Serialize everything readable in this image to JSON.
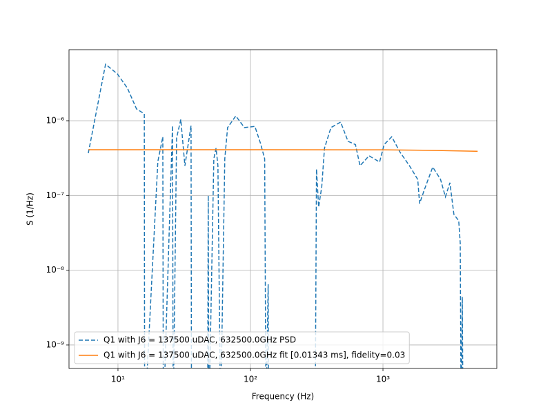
{
  "chart_data": {
    "type": "line",
    "xlabel": "Frequency (Hz)",
    "ylabel": "S (1/Hz)",
    "xscale": "log",
    "yscale": "log",
    "grid": true,
    "legend": "lower left",
    "xlim": [
      4.27,
      7230
    ],
    "ylim": [
      4.85e-10,
      8.93e-06
    ],
    "xticks": [
      {
        "value": 10,
        "label": "10¹"
      },
      {
        "value": 100,
        "label": "10²"
      },
      {
        "value": 1000,
        "label": "10³"
      }
    ],
    "yticks": [
      {
        "value": 1e-09,
        "label": "10⁻⁹"
      },
      {
        "value": 1e-08,
        "label": "10⁻⁸"
      },
      {
        "value": 1e-07,
        "label": "10⁻⁷"
      },
      {
        "value": 1e-06,
        "label": "10⁻⁶"
      }
    ],
    "series": [
      {
        "name": "Q1 with J6 = 137500 uDAC, 632500.0GHz PSD",
        "color": "#1f77b4",
        "dash": "dashed",
        "x": [
          5.97,
          8.06,
          9.88,
          11.8,
          13.8,
          15.8,
          15.9,
          20.0,
          21.8,
          22.0,
          25.8,
          26.1,
          27.7,
          29.8,
          32.0,
          35.6,
          35.9,
          47.5,
          48.0,
          48.6,
          52.9,
          55.0,
          56.8,
          59.5,
          64.0,
          67.2,
          77.5,
          90,
          108,
          119,
          128,
          131,
          136,
          137,
          308,
          315,
          327,
          345,
          362,
          405,
          479,
          545,
          620,
          671,
          786,
          943,
          1020,
          1165,
          1345,
          1585,
          1830,
          1890,
          2055,
          2375,
          2720,
          2960,
          3200,
          3430,
          3730,
          3830,
          3890,
          3970,
          4020
        ],
        "values": [
          3.68e-07,
          5.7e-06,
          4.25e-06,
          2.72e-06,
          1.44e-06,
          1.24e-06,
          1e-10,
          2.85e-07,
          6.1e-07,
          1e-10,
          8.6e-07,
          1e-10,
          5.9e-07,
          1.04e-06,
          2.5e-07,
          8.6e-07,
          1e-10,
          1e-10,
          1e-07,
          1e-10,
          3.1e-07,
          4.3e-07,
          2.5e-07,
          1e-10,
          3.1e-07,
          8.1e-07,
          1.16e-06,
          8.1e-07,
          8.4e-07,
          5e-07,
          3.1e-07,
          1e-10,
          6.5e-09,
          1e-10,
          1e-10,
          2.26e-07,
          7e-08,
          1.3e-07,
          4.3e-07,
          8.1e-07,
          9.6e-07,
          5.3e-07,
          4.8e-07,
          2.5e-07,
          3.4e-07,
          2.8e-07,
          4.8e-07,
          6.1e-07,
          3.8e-07,
          2.5e-07,
          1.64e-07,
          7.8e-08,
          1.2e-07,
          2.4e-07,
          1.64e-07,
          9.6e-08,
          1.48e-07,
          5.6e-08,
          4.6e-08,
          2.3e-08,
          1e-10,
          4.4e-09,
          1e-10
        ]
      },
      {
        "name": "Q1 with J6 = 137500 uDAC, 632500.0GHz fit [0.01343 ms], fidelity=0.03",
        "color": "#ff7f0e",
        "dash": "solid",
        "x": [
          6,
          100,
          1000,
          2000,
          3000,
          5180
        ],
        "values": [
          4.1e-07,
          4.1e-07,
          4.08e-07,
          4.03e-07,
          3.98e-07,
          3.9e-07
        ]
      }
    ]
  }
}
